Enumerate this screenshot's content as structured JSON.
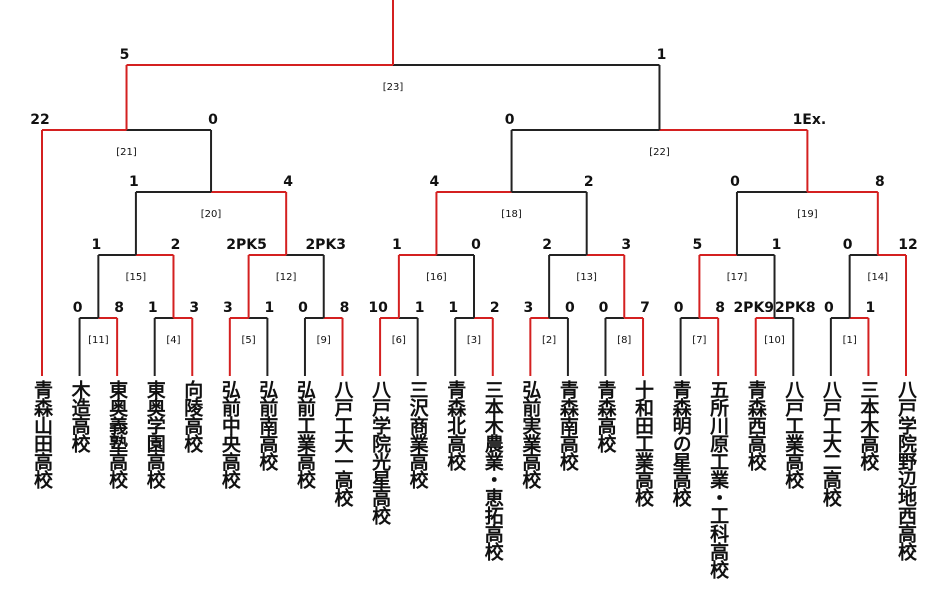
{
  "teams": [
    "青森山田高校",
    "木造高校",
    "東奥義塾高校",
    "東奥学園高校",
    "向陵高校",
    "弘前中央高校",
    "弘前南高校",
    "弘前工業高校",
    "八戸工大一高校",
    "八戸学院光星高校",
    "三沢商業高校",
    "青森北高校",
    "三本木農業・恵拓高校",
    "弘前実業高校",
    "青森南高校",
    "青森高校",
    "十和田工業高校",
    "青森明の星高校",
    "五所川原工業・工科高校",
    "青森西高校",
    "八戸工業高校",
    "八戸工大二高校",
    "三本木高校",
    "八戸学院野辺地西高校"
  ],
  "matches": [
    {
      "label": "[11]",
      "scores": [
        0,
        8
      ]
    },
    {
      "label": "[4]",
      "scores": [
        1,
        3
      ]
    },
    {
      "label": "[5]",
      "scores": [
        3,
        1
      ]
    },
    {
      "label": "[9]",
      "scores": [
        0,
        8
      ]
    },
    {
      "label": "[6]",
      "scores": [
        10,
        1
      ]
    },
    {
      "label": "[3]",
      "scores": [
        1,
        2
      ]
    },
    {
      "label": "[2]",
      "scores": [
        3,
        0
      ]
    },
    {
      "label": "[8]",
      "scores": [
        0,
        7
      ]
    },
    {
      "label": "[7]",
      "scores": [
        0,
        8
      ]
    },
    {
      "label": "[10]",
      "scores": [
        "2PK9",
        "2PK8"
      ]
    },
    {
      "label": "[1]",
      "scores": [
        0,
        1
      ]
    },
    {
      "label": "[15]",
      "scores": [
        1,
        2
      ]
    },
    {
      "label": "[12]",
      "scores": [
        "2PK5",
        "2PK3"
      ]
    },
    {
      "label": "[16]",
      "scores": [
        1,
        0
      ]
    },
    {
      "label": "[13]",
      "scores": [
        2,
        3
      ]
    },
    {
      "label": "[17]",
      "scores": [
        5,
        1
      ]
    },
    {
      "label": "[14]",
      "scores": [
        0,
        12
      ]
    },
    {
      "label": "[20]",
      "scores": [
        1,
        4
      ]
    },
    {
      "label": "[18]",
      "scores": [
        4,
        2
      ]
    },
    {
      "label": "[19]",
      "scores": [
        0,
        8
      ]
    },
    {
      "label": "[21]",
      "scores": [
        22,
        0
      ]
    },
    {
      "label": "[22]",
      "scores": [
        0,
        "1Ex."
      ]
    },
    {
      "label": "[23]",
      "scores": [
        5,
        1
      ]
    }
  ]
}
